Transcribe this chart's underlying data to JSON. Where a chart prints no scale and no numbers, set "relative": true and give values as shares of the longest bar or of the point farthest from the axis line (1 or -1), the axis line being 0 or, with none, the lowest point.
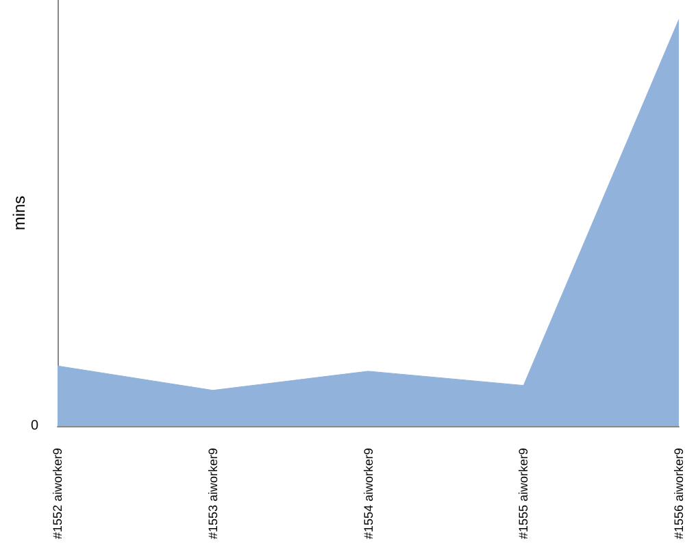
{
  "chart_data": {
    "type": "area",
    "ylabel": "mins",
    "categories": [
      "#1552 aiworker9",
      "#1553 aiworker9",
      "#1554 aiworker9",
      "#1555 aiworker9",
      "#1556 aiworker9"
    ],
    "values": [
      0.148,
      0.088,
      0.135,
      0.1,
      1
    ],
    "color": "#90b2db",
    "relative": true,
    "annotations": [
      "0"
    ]
  }
}
